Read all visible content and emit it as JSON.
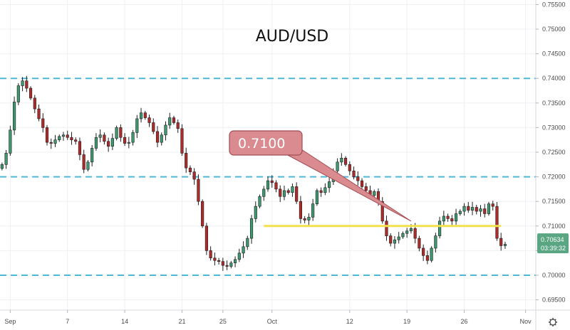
{
  "chart_data": {
    "type": "candlestick",
    "title": "AUD/USD",
    "ylim": [
      0.6925,
      0.7575
    ],
    "y_ticks": [
      "0.75500",
      "0.75000",
      "0.74500",
      "0.74000",
      "0.73500",
      "0.73000",
      "0.72500",
      "0.72000",
      "0.71500",
      "0.71000",
      "0.70500",
      "0.70000",
      "0.69500"
    ],
    "x_ticks": [
      {
        "label": "Sep",
        "index": 2
      },
      {
        "label": "7",
        "index": 16
      },
      {
        "label": "14",
        "index": 30
      },
      {
        "label": "21",
        "index": 44
      },
      {
        "label": "25",
        "index": 54
      },
      {
        "label": "Oct",
        "index": 66
      },
      {
        "label": "12",
        "index": 85
      },
      {
        "label": "19",
        "index": 99
      },
      {
        "label": "26",
        "index": 113
      },
      {
        "label": "Nov",
        "index": 128
      }
    ],
    "n_slots": 131,
    "dashed_levels": [
      0.74,
      0.72,
      0.7
    ],
    "support_line": {
      "level": 0.71,
      "from_index": 64,
      "to_index": 122,
      "color": "#f2e14c"
    },
    "callout": {
      "text": "0.7100",
      "color": "#d98b90",
      "border": "#a34d52",
      "pointer_to_index": 100,
      "pointer_to_level": 0.711
    },
    "last_price": {
      "value": "0.70634",
      "countdown": "03:39:32",
      "color": "#5aa582"
    },
    "up_color": "#3d9970",
    "down_color": "#b02a2a",
    "closes": [
      0.7225,
      0.7248,
      0.7295,
      0.7352,
      0.7385,
      0.7395,
      0.738,
      0.736,
      0.7338,
      0.7318,
      0.73,
      0.727,
      0.7268,
      0.7275,
      0.7282,
      0.7285,
      0.728,
      0.7275,
      0.7272,
      0.7245,
      0.7215,
      0.723,
      0.7258,
      0.728,
      0.7285,
      0.7272,
      0.7262,
      0.7278,
      0.73,
      0.728,
      0.7268,
      0.727,
      0.729,
      0.7318,
      0.733,
      0.732,
      0.731,
      0.7292,
      0.727,
      0.7285,
      0.7305,
      0.732,
      0.731,
      0.7298,
      0.7248,
      0.7218,
      0.721,
      0.7195,
      0.715,
      0.71,
      0.705,
      0.7035,
      0.703,
      0.7028,
      0.702,
      0.7018,
      0.7025,
      0.7032,
      0.7045,
      0.7058,
      0.7075,
      0.7115,
      0.714,
      0.716,
      0.7175,
      0.7192,
      0.7188,
      0.7175,
      0.716,
      0.7172,
      0.7168,
      0.718,
      0.715,
      0.7115,
      0.7112,
      0.7118,
      0.7145,
      0.7172,
      0.7168,
      0.7178,
      0.719,
      0.7212,
      0.723,
      0.7238,
      0.7225,
      0.7212,
      0.72,
      0.7192,
      0.718,
      0.7172,
      0.7162,
      0.717,
      0.715,
      0.711,
      0.708,
      0.7065,
      0.7072,
      0.7078,
      0.7085,
      0.709,
      0.7095,
      0.7075,
      0.7055,
      0.704,
      0.703,
      0.7055,
      0.708,
      0.711,
      0.712,
      0.7115,
      0.711,
      0.7125,
      0.713,
      0.714,
      0.7132,
      0.7138,
      0.713,
      0.7135,
      0.7125,
      0.7145,
      0.714,
      0.7075,
      0.706,
      0.7063
    ]
  }
}
